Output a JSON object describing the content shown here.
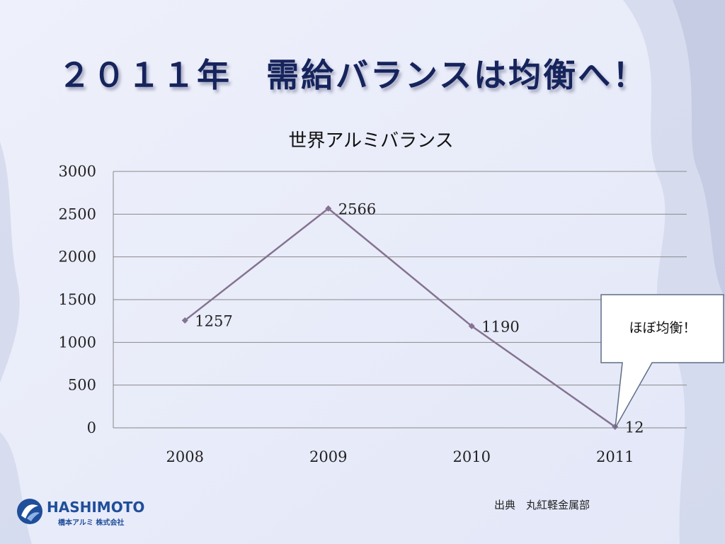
{
  "slide": {
    "title": "２０１１年　需給バランスは均衡へ！"
  },
  "chart_data": {
    "type": "line",
    "title": "世界アルミバランス",
    "categories": [
      "2008",
      "2009",
      "2010",
      "2011"
    ],
    "series": [
      {
        "values": [
          1257,
          2566,
          1190,
          12
        ]
      }
    ],
    "ylim": [
      0,
      3000
    ],
    "yticks": [
      "0",
      "500",
      "1000",
      "1500",
      "2000",
      "2500",
      "3000"
    ],
    "data_labels": [
      "1257",
      "2566",
      "1190",
      "12"
    ],
    "grid": true,
    "legend": "none",
    "line_color": "#857391"
  },
  "callout": {
    "text": "ほぼ均衡！"
  },
  "source": {
    "text": "出典　丸紅軽金属部"
  },
  "logo": {
    "name": "HASHIMOTO",
    "subtitle": "橋本アルミ 株式会社"
  }
}
